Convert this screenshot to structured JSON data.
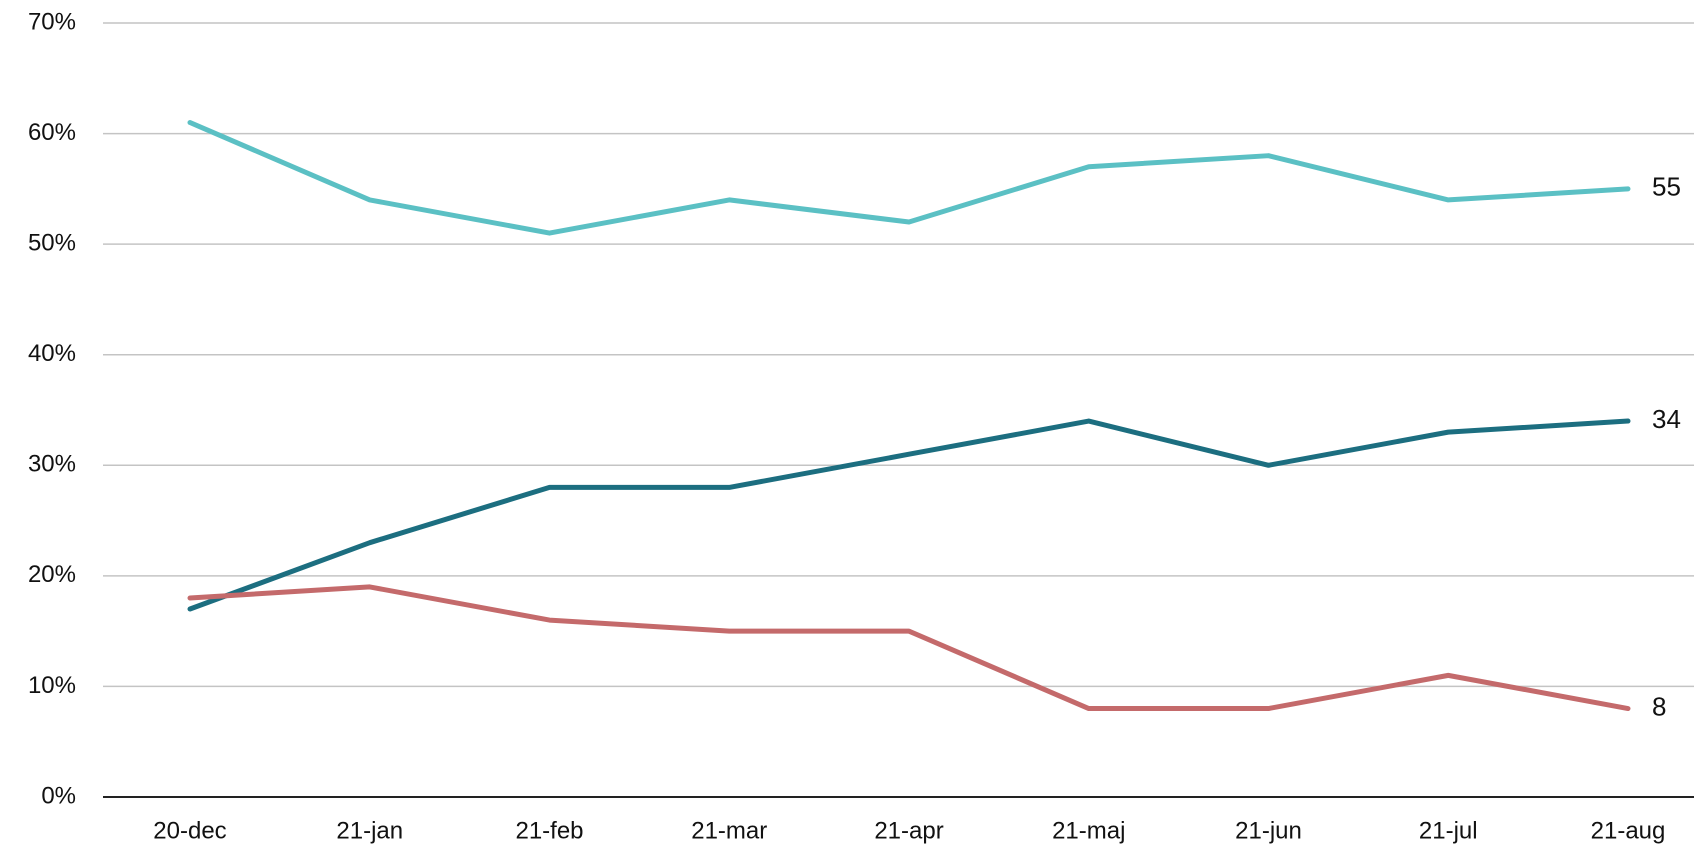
{
  "chart_data": {
    "type": "line",
    "categories": [
      "20-dec",
      "21-jan",
      "21-feb",
      "21-mar",
      "21-apr",
      "21-maj",
      "21-jun",
      "21-jul",
      "21-aug"
    ],
    "series": [
      {
        "color": "#5bc0c4",
        "values": [
          61,
          54,
          51,
          54,
          52,
          57,
          58,
          54,
          55
        ]
      },
      {
        "color": "#1c6e80",
        "values": [
          17,
          23,
          28,
          28,
          31,
          34,
          30,
          33,
          34
        ]
      },
      {
        "color": "#c46a6b",
        "values": [
          18,
          19,
          16,
          15,
          15,
          8,
          8,
          11,
          8
        ]
      }
    ],
    "ylim": [
      0,
      70
    ],
    "yticks": [
      {
        "value": 0,
        "label": "0%"
      },
      {
        "value": 10,
        "label": "10%"
      },
      {
        "value": 20,
        "label": "20%"
      },
      {
        "value": 30,
        "label": "30%"
      },
      {
        "value": 40,
        "label": "40%"
      },
      {
        "value": 50,
        "label": "50%"
      },
      {
        "value": 60,
        "label": "60%"
      },
      {
        "value": 70,
        "label": "70%"
      }
    ],
    "grid": true,
    "end_labels": true
  }
}
